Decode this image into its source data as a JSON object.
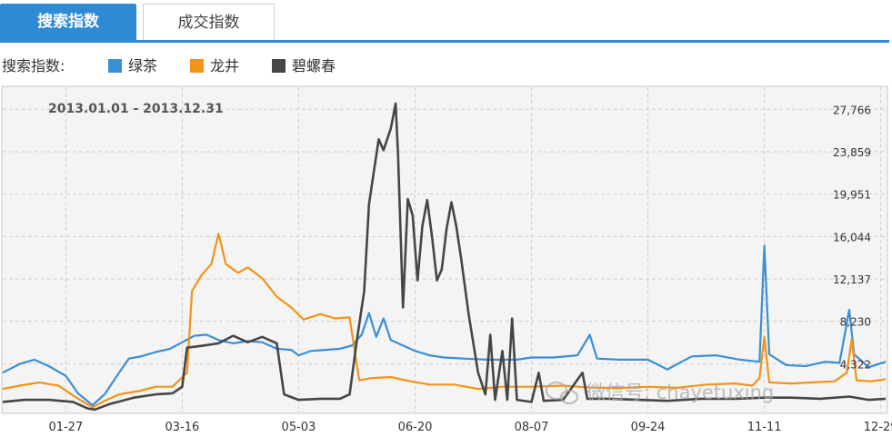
{
  "tabs": {
    "search_index": "搜索指数",
    "trade_index": "成交指数"
  },
  "legend": {
    "title": "搜索指数:",
    "items": [
      {
        "label": "绿茶",
        "color": "#3a8fd6"
      },
      {
        "label": "龙井",
        "color": "#f39317"
      },
      {
        "label": "碧螺春",
        "color": "#464646"
      }
    ]
  },
  "watermark": "微信号: chayetuxing",
  "chart_data": {
    "type": "line",
    "title": "2013.01.01 - 2013.12.31",
    "x_ticks": [
      "01-27",
      "03-16",
      "05-03",
      "06-20",
      "08-07",
      "09-24",
      "11-11",
      "12-29"
    ],
    "y_ticks": [
      27766,
      23859,
      19951,
      16044,
      12137,
      8230,
      4322
    ],
    "y_tick_labels": [
      "27,766",
      "23,859",
      "19,951",
      "16,044",
      "12,137",
      "8,230",
      "4,322"
    ],
    "x_range": [
      "2013-01-01",
      "2013-12-31"
    ],
    "y_range": [
      0,
      29800
    ],
    "grid": true,
    "legend_placement": "top",
    "series": [
      {
        "name": "绿茶",
        "color": "#3a8fd6",
        "points": [
          [
            "2013-01-01",
            3500
          ],
          [
            "2013-01-08",
            4300
          ],
          [
            "2013-01-14",
            4700
          ],
          [
            "2013-01-20",
            4100
          ],
          [
            "2013-01-27",
            3200
          ],
          [
            "2013-02-01",
            1600
          ],
          [
            "2013-02-07",
            500
          ],
          [
            "2013-02-12",
            1500
          ],
          [
            "2013-02-18",
            3500
          ],
          [
            "2013-02-22",
            4800
          ],
          [
            "2013-02-27",
            5000
          ],
          [
            "2013-03-05",
            5400
          ],
          [
            "2013-03-11",
            5700
          ],
          [
            "2013-03-16",
            6300
          ],
          [
            "2013-03-21",
            6900
          ],
          [
            "2013-03-26",
            7000
          ],
          [
            "2013-03-31",
            6500
          ],
          [
            "2013-04-06",
            6200
          ],
          [
            "2013-04-12",
            6400
          ],
          [
            "2013-04-18",
            6300
          ],
          [
            "2013-04-24",
            5700
          ],
          [
            "2013-04-30",
            5600
          ],
          [
            "2013-05-03",
            5100
          ],
          [
            "2013-05-08",
            5500
          ],
          [
            "2013-05-14",
            5600
          ],
          [
            "2013-05-20",
            5700
          ],
          [
            "2013-05-25",
            6000
          ],
          [
            "2013-05-29",
            7000
          ],
          [
            "2013-06-01",
            9000
          ],
          [
            "2013-06-04",
            6800
          ],
          [
            "2013-06-07",
            8500
          ],
          [
            "2013-06-10",
            6500
          ],
          [
            "2013-06-14",
            6100
          ],
          [
            "2013-06-20",
            5500
          ],
          [
            "2013-06-26",
            5100
          ],
          [
            "2013-07-02",
            4900
          ],
          [
            "2013-07-10",
            4800
          ],
          [
            "2013-07-20",
            4700
          ],
          [
            "2013-08-01",
            4700
          ],
          [
            "2013-08-07",
            4900
          ],
          [
            "2013-08-16",
            4900
          ],
          [
            "2013-08-26",
            5100
          ],
          [
            "2013-08-31",
            7000
          ],
          [
            "2013-09-03",
            4800
          ],
          [
            "2013-09-12",
            4700
          ],
          [
            "2013-09-24",
            4700
          ],
          [
            "2013-10-02",
            3800
          ],
          [
            "2013-10-12",
            5000
          ],
          [
            "2013-10-22",
            5100
          ],
          [
            "2013-11-01",
            4700
          ],
          [
            "2013-11-09",
            4500
          ],
          [
            "2013-11-11",
            15200
          ],
          [
            "2013-11-13",
            5200
          ],
          [
            "2013-11-20",
            4200
          ],
          [
            "2013-11-28",
            4100
          ],
          [
            "2013-12-06",
            4500
          ],
          [
            "2013-12-12",
            4400
          ],
          [
            "2013-12-16",
            9300
          ],
          [
            "2013-12-18",
            5200
          ],
          [
            "2013-12-24",
            4000
          ],
          [
            "2013-12-31",
            4500
          ]
        ]
      },
      {
        "name": "龙井",
        "color": "#f39317",
        "points": [
          [
            "2013-01-01",
            2000
          ],
          [
            "2013-01-08",
            2300
          ],
          [
            "2013-01-16",
            2600
          ],
          [
            "2013-01-24",
            2300
          ],
          [
            "2013-01-30",
            1400
          ],
          [
            "2013-02-04",
            700
          ],
          [
            "2013-02-07",
            300
          ],
          [
            "2013-02-12",
            900
          ],
          [
            "2013-02-18",
            1500
          ],
          [
            "2013-02-26",
            1800
          ],
          [
            "2013-03-05",
            2200
          ],
          [
            "2013-03-12",
            2200
          ],
          [
            "2013-03-18",
            3500
          ],
          [
            "2013-03-20",
            11000
          ],
          [
            "2013-03-24",
            12500
          ],
          [
            "2013-03-28",
            13500
          ],
          [
            "2013-03-31",
            16300
          ],
          [
            "2013-04-03",
            13500
          ],
          [
            "2013-04-08",
            12700
          ],
          [
            "2013-04-12",
            13200
          ],
          [
            "2013-04-18",
            12200
          ],
          [
            "2013-04-24",
            10500
          ],
          [
            "2013-04-30",
            9500
          ],
          [
            "2013-05-05",
            8400
          ],
          [
            "2013-05-12",
            8900
          ],
          [
            "2013-05-18",
            8500
          ],
          [
            "2013-05-24",
            8600
          ],
          [
            "2013-05-28",
            2800
          ],
          [
            "2013-06-02",
            3000
          ],
          [
            "2013-06-10",
            3100
          ],
          [
            "2013-06-18",
            2700
          ],
          [
            "2013-06-26",
            2400
          ],
          [
            "2013-07-06",
            2400
          ],
          [
            "2013-07-16",
            2000
          ],
          [
            "2013-07-26",
            2200
          ],
          [
            "2013-08-07",
            2200
          ],
          [
            "2013-08-20",
            2300
          ],
          [
            "2013-09-02",
            2100
          ],
          [
            "2013-09-14",
            2100
          ],
          [
            "2013-09-24",
            2200
          ],
          [
            "2013-10-06",
            2100
          ],
          [
            "2013-10-18",
            2400
          ],
          [
            "2013-10-30",
            2500
          ],
          [
            "2013-11-06",
            2300
          ],
          [
            "2013-11-09",
            3000
          ],
          [
            "2013-11-11",
            6800
          ],
          [
            "2013-11-13",
            2600
          ],
          [
            "2013-11-22",
            2500
          ],
          [
            "2013-12-01",
            2600
          ],
          [
            "2013-12-10",
            2700
          ],
          [
            "2013-12-15",
            3500
          ],
          [
            "2013-12-17",
            6600
          ],
          [
            "2013-12-19",
            2800
          ],
          [
            "2013-12-25",
            2700
          ],
          [
            "2013-12-31",
            2900
          ]
        ]
      },
      {
        "name": "碧螺春",
        "color": "#464646",
        "points": [
          [
            "2013-01-01",
            800
          ],
          [
            "2013-01-10",
            1000
          ],
          [
            "2013-01-20",
            1000
          ],
          [
            "2013-01-30",
            800
          ],
          [
            "2013-02-05",
            200
          ],
          [
            "2013-02-08",
            100
          ],
          [
            "2013-02-14",
            600
          ],
          [
            "2013-02-24",
            1200
          ],
          [
            "2013-03-05",
            1500
          ],
          [
            "2013-03-12",
            1600
          ],
          [
            "2013-03-16",
            2200
          ],
          [
            "2013-03-18",
            5800
          ],
          [
            "2013-03-25",
            6000
          ],
          [
            "2013-03-31",
            6200
          ],
          [
            "2013-04-06",
            6900
          ],
          [
            "2013-04-12",
            6300
          ],
          [
            "2013-04-18",
            6800
          ],
          [
            "2013-04-24",
            6200
          ],
          [
            "2013-04-27",
            1500
          ],
          [
            "2013-05-03",
            1000
          ],
          [
            "2013-05-12",
            1100
          ],
          [
            "2013-05-20",
            1100
          ],
          [
            "2013-05-24",
            1500
          ],
          [
            "2013-05-27",
            6500
          ],
          [
            "2013-05-30",
            11000
          ],
          [
            "2013-06-01",
            19000
          ],
          [
            "2013-06-03",
            22000
          ],
          [
            "2013-06-05",
            25000
          ],
          [
            "2013-06-07",
            24000
          ],
          [
            "2013-06-10",
            26000
          ],
          [
            "2013-06-12",
            28300
          ],
          [
            "2013-06-13",
            23500
          ],
          [
            "2013-06-15",
            9500
          ],
          [
            "2013-06-17",
            19500
          ],
          [
            "2013-06-19",
            18000
          ],
          [
            "2013-06-21",
            12000
          ],
          [
            "2013-06-23",
            17000
          ],
          [
            "2013-06-25",
            19400
          ],
          [
            "2013-06-27",
            16000
          ],
          [
            "2013-06-29",
            12000
          ],
          [
            "2013-07-01",
            13000
          ],
          [
            "2013-07-03",
            16800
          ],
          [
            "2013-07-05",
            19200
          ],
          [
            "2013-07-07",
            17000
          ],
          [
            "2013-07-09",
            14000
          ],
          [
            "2013-07-12",
            9000
          ],
          [
            "2013-07-16",
            3500
          ],
          [
            "2013-07-19",
            1500
          ],
          [
            "2013-07-21",
            7000
          ],
          [
            "2013-07-23",
            1000
          ],
          [
            "2013-07-26",
            5500
          ],
          [
            "2013-07-28",
            1000
          ],
          [
            "2013-07-30",
            8500
          ],
          [
            "2013-08-01",
            1000
          ],
          [
            "2013-08-07",
            800
          ],
          [
            "2013-08-10",
            3500
          ],
          [
            "2013-08-12",
            900
          ],
          [
            "2013-08-20",
            1000
          ],
          [
            "2013-08-28",
            3500
          ],
          [
            "2013-08-30",
            1100
          ],
          [
            "2013-09-08",
            1100
          ],
          [
            "2013-09-20",
            1000
          ],
          [
            "2013-10-02",
            900
          ],
          [
            "2013-10-16",
            1100
          ],
          [
            "2013-10-30",
            1100
          ],
          [
            "2013-11-11",
            1200
          ],
          [
            "2013-11-22",
            1200
          ],
          [
            "2013-12-04",
            1100
          ],
          [
            "2013-12-16",
            1300
          ],
          [
            "2013-12-24",
            1000
          ],
          [
            "2013-12-31",
            1100
          ]
        ]
      }
    ]
  }
}
